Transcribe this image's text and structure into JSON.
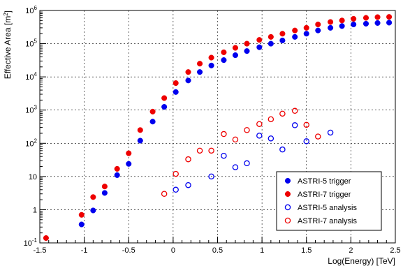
{
  "chart_data": {
    "type": "scatter",
    "xlabel": "Log(Energy) [TeV]",
    "ylabel": "Effective Area [m^2]",
    "ylabel_prefix": "Effective Area [m",
    "ylabel_exp": "2",
    "ylabel_suffix": "]",
    "xlim": [
      -1.5,
      2.5
    ],
    "ylim": [
      0.1,
      1000000
    ],
    "yscale": "log",
    "grid": true,
    "legend_position": "bottom-right",
    "x_ticks": [
      {
        "value": -1.5,
        "label": "-1.5"
      },
      {
        "value": -1,
        "label": "-1"
      },
      {
        "value": -0.5,
        "label": "-0.5"
      },
      {
        "value": 0,
        "label": "0"
      },
      {
        "value": 0.5,
        "label": "0.5"
      },
      {
        "value": 1,
        "label": "1"
      },
      {
        "value": 1.5,
        "label": "1.5"
      },
      {
        "value": 2,
        "label": "2"
      },
      {
        "value": 2.5,
        "label": "2.5"
      }
    ],
    "y_ticks": [
      {
        "value": 0.1,
        "base": "10",
        "exp": "-1",
        "label": ""
      },
      {
        "value": 1,
        "label": "1"
      },
      {
        "value": 10,
        "label": "10"
      },
      {
        "value": 100,
        "base": "10",
        "exp": "2",
        "label": ""
      },
      {
        "value": 1000,
        "base": "10",
        "exp": "3",
        "label": ""
      },
      {
        "value": 10000,
        "base": "10",
        "exp": "4",
        "label": ""
      },
      {
        "value": 100000,
        "base": "10",
        "exp": "5",
        "label": ""
      },
      {
        "value": 1000000,
        "base": "10",
        "exp": "6",
        "label": ""
      }
    ],
    "series": [
      {
        "name": "ASTRI-5 trigger",
        "color": "#0000ee",
        "marker": "filled-circle",
        "points": [
          [
            -1.03,
            0.36
          ],
          [
            -0.9,
            0.95
          ],
          [
            -0.77,
            3.2
          ],
          [
            -0.63,
            11
          ],
          [
            -0.5,
            24
          ],
          [
            -0.37,
            120
          ],
          [
            -0.23,
            450
          ],
          [
            -0.1,
            1250
          ],
          [
            0.03,
            3500
          ],
          [
            0.17,
            7800
          ],
          [
            0.3,
            14000
          ],
          [
            0.43,
            22000
          ],
          [
            0.57,
            32000
          ],
          [
            0.7,
            45000
          ],
          [
            0.83,
            60000
          ],
          [
            0.97,
            78000
          ],
          [
            1.1,
            100000
          ],
          [
            1.23,
            125000
          ],
          [
            1.37,
            160000
          ],
          [
            1.5,
            200000
          ],
          [
            1.63,
            250000
          ],
          [
            1.77,
            300000
          ],
          [
            1.9,
            340000
          ],
          [
            2.03,
            380000
          ],
          [
            2.17,
            400000
          ],
          [
            2.3,
            420000
          ],
          [
            2.43,
            430000
          ]
        ]
      },
      {
        "name": "ASTRI-7 trigger",
        "color": "#ee0000",
        "marker": "filled-circle",
        "points": [
          [
            -1.43,
            0.14
          ],
          [
            -1.03,
            0.7
          ],
          [
            -0.9,
            2.4
          ],
          [
            -0.77,
            5
          ],
          [
            -0.63,
            17
          ],
          [
            -0.5,
            50
          ],
          [
            -0.37,
            250
          ],
          [
            -0.23,
            900
          ],
          [
            -0.1,
            2300
          ],
          [
            0.03,
            6500
          ],
          [
            0.17,
            14000
          ],
          [
            0.3,
            25000
          ],
          [
            0.43,
            38000
          ],
          [
            0.57,
            55000
          ],
          [
            0.7,
            75000
          ],
          [
            0.83,
            100000
          ],
          [
            0.97,
            130000
          ],
          [
            1.1,
            160000
          ],
          [
            1.23,
            200000
          ],
          [
            1.37,
            250000
          ],
          [
            1.5,
            300000
          ],
          [
            1.63,
            380000
          ],
          [
            1.77,
            450000
          ],
          [
            1.9,
            500000
          ],
          [
            2.03,
            560000
          ],
          [
            2.17,
            600000
          ],
          [
            2.3,
            630000
          ],
          [
            2.43,
            640000
          ]
        ]
      },
      {
        "name": "ASTRI-5 analysis",
        "color": "#0000ee",
        "marker": "open-circle",
        "points": [
          [
            0.03,
            4
          ],
          [
            0.17,
            5.5
          ],
          [
            0.43,
            10
          ],
          [
            0.57,
            42
          ],
          [
            0.7,
            19
          ],
          [
            0.83,
            25
          ],
          [
            0.97,
            170
          ],
          [
            1.1,
            140
          ],
          [
            1.23,
            65
          ],
          [
            1.37,
            350
          ],
          [
            1.5,
            115
          ],
          [
            1.77,
            210
          ]
        ]
      },
      {
        "name": "ASTRI-7 analysis",
        "color": "#ee0000",
        "marker": "open-circle",
        "points": [
          [
            -0.1,
            3
          ],
          [
            0.03,
            12
          ],
          [
            0.17,
            33
          ],
          [
            0.3,
            60
          ],
          [
            0.43,
            60
          ],
          [
            0.57,
            190
          ],
          [
            0.7,
            130
          ],
          [
            0.83,
            250
          ],
          [
            0.97,
            380
          ],
          [
            1.1,
            530
          ],
          [
            1.23,
            780
          ],
          [
            1.37,
            950
          ],
          [
            1.5,
            360
          ],
          [
            1.63,
            160
          ]
        ]
      }
    ]
  }
}
